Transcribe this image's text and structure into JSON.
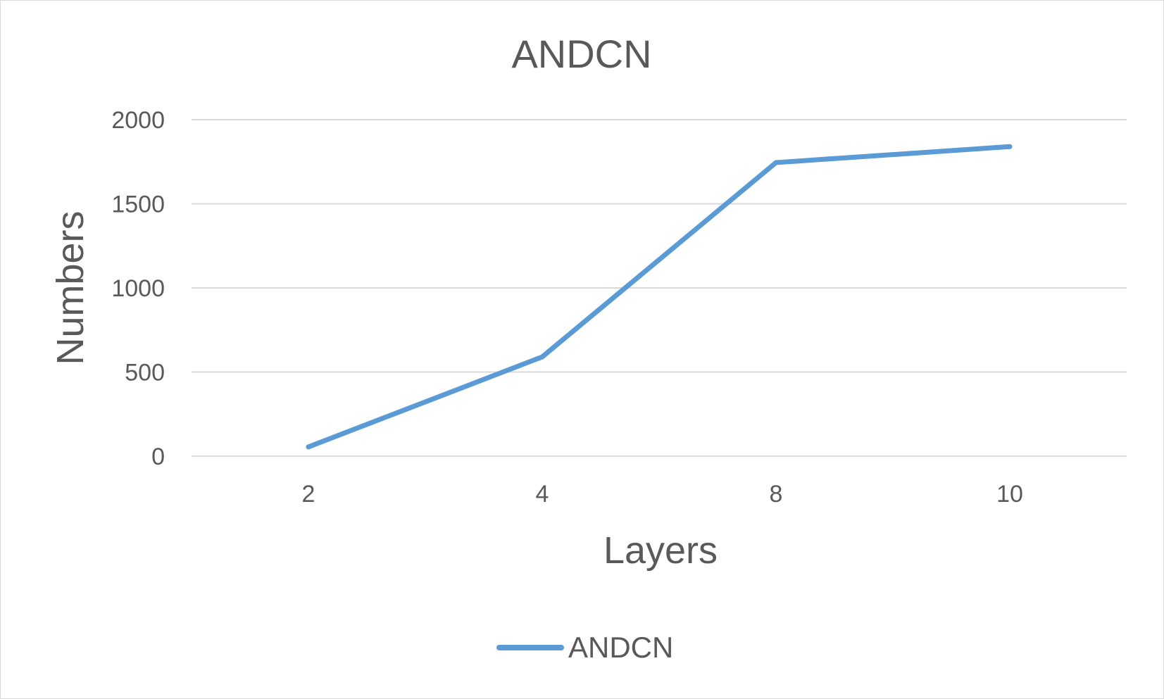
{
  "chart_data": {
    "type": "line",
    "title": "ANDCN",
    "xlabel": "Layers",
    "ylabel": "Numbers",
    "categories": [
      "2",
      "4",
      "8",
      "10"
    ],
    "series": [
      {
        "name": "ANDCN",
        "values": [
          55,
          590,
          1745,
          1840
        ],
        "color": "#5b9bd5"
      }
    ],
    "ylim": [
      0,
      2000
    ],
    "yticks": [
      "0",
      "500",
      "1000",
      "1500",
      "2000"
    ],
    "grid": true,
    "legend_position": "bottom"
  }
}
